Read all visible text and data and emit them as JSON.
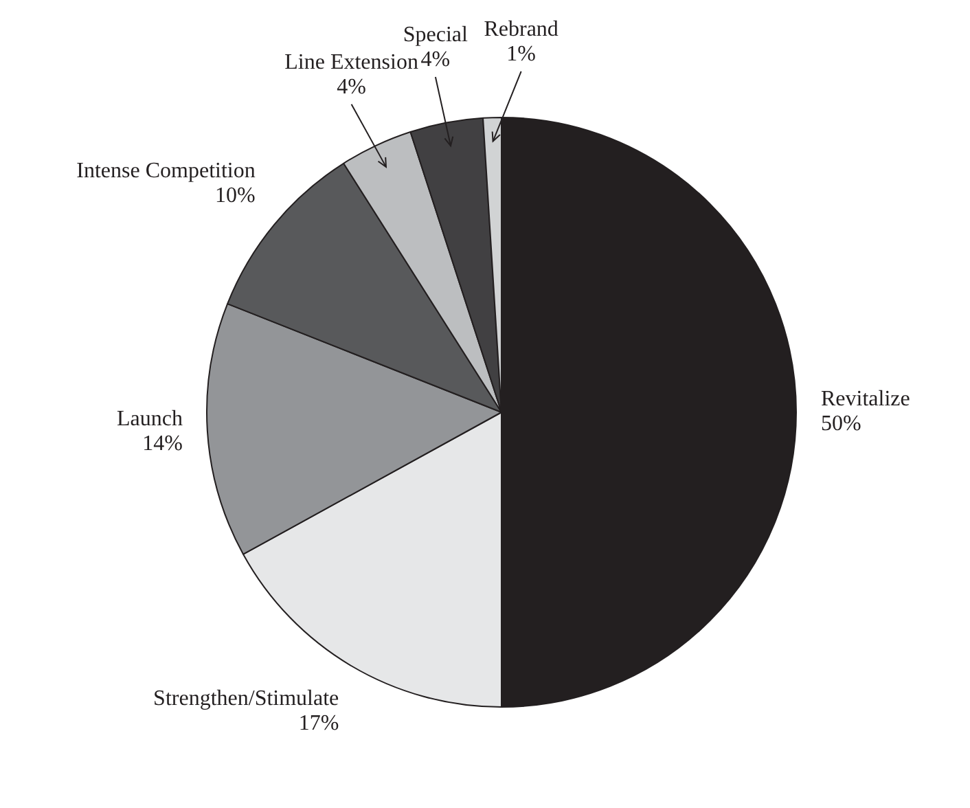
{
  "chart_data": {
    "type": "pie",
    "categories": [
      "Revitalize",
      "Strengthen/Stimulate",
      "Launch",
      "Intense Competition",
      "Line Extension",
      "Special",
      "Rebrand"
    ],
    "values": [
      50,
      17,
      14,
      10,
      4,
      4,
      1
    ],
    "value_labels": [
      "50%",
      "17%",
      "14%",
      "10%",
      "4%",
      "4%",
      "1%"
    ],
    "colors": [
      "#231f20",
      "#e6e7e8",
      "#939598",
      "#58595b",
      "#bcbec0",
      "#414042",
      "#d1d3d4"
    ],
    "legend": false
  }
}
